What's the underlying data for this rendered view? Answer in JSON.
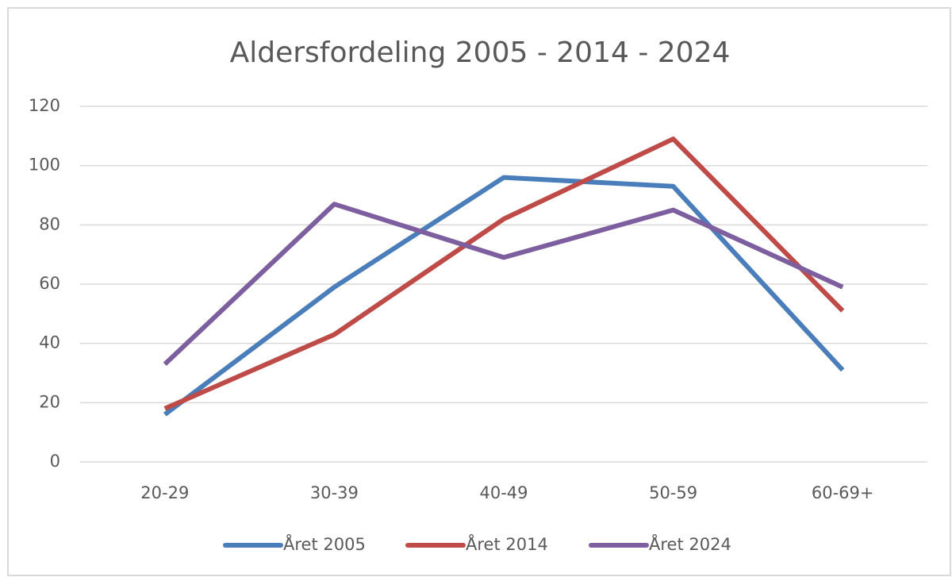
{
  "chart_data": {
    "type": "line",
    "title": "Aldersfordeling 2005 - 2014 - 2024",
    "categories": [
      "20-29",
      "30-39",
      "40-49",
      "50-59",
      "60-69+"
    ],
    "series": [
      {
        "name": "Året 2005",
        "color": "#4a7ebb",
        "values": [
          16,
          59,
          96,
          93,
          31
        ]
      },
      {
        "name": "Året 2014",
        "color": "#be4b48",
        "values": [
          18,
          43,
          82,
          109,
          51
        ]
      },
      {
        "name": "Året 2024",
        "color": "#7d5fa0",
        "values": [
          33,
          87,
          69,
          85,
          59
        ]
      }
    ],
    "ylim": [
      0,
      120
    ],
    "yticks": [
      0,
      20,
      40,
      60,
      80,
      100,
      120
    ],
    "grid": true,
    "legend": "bottom"
  }
}
